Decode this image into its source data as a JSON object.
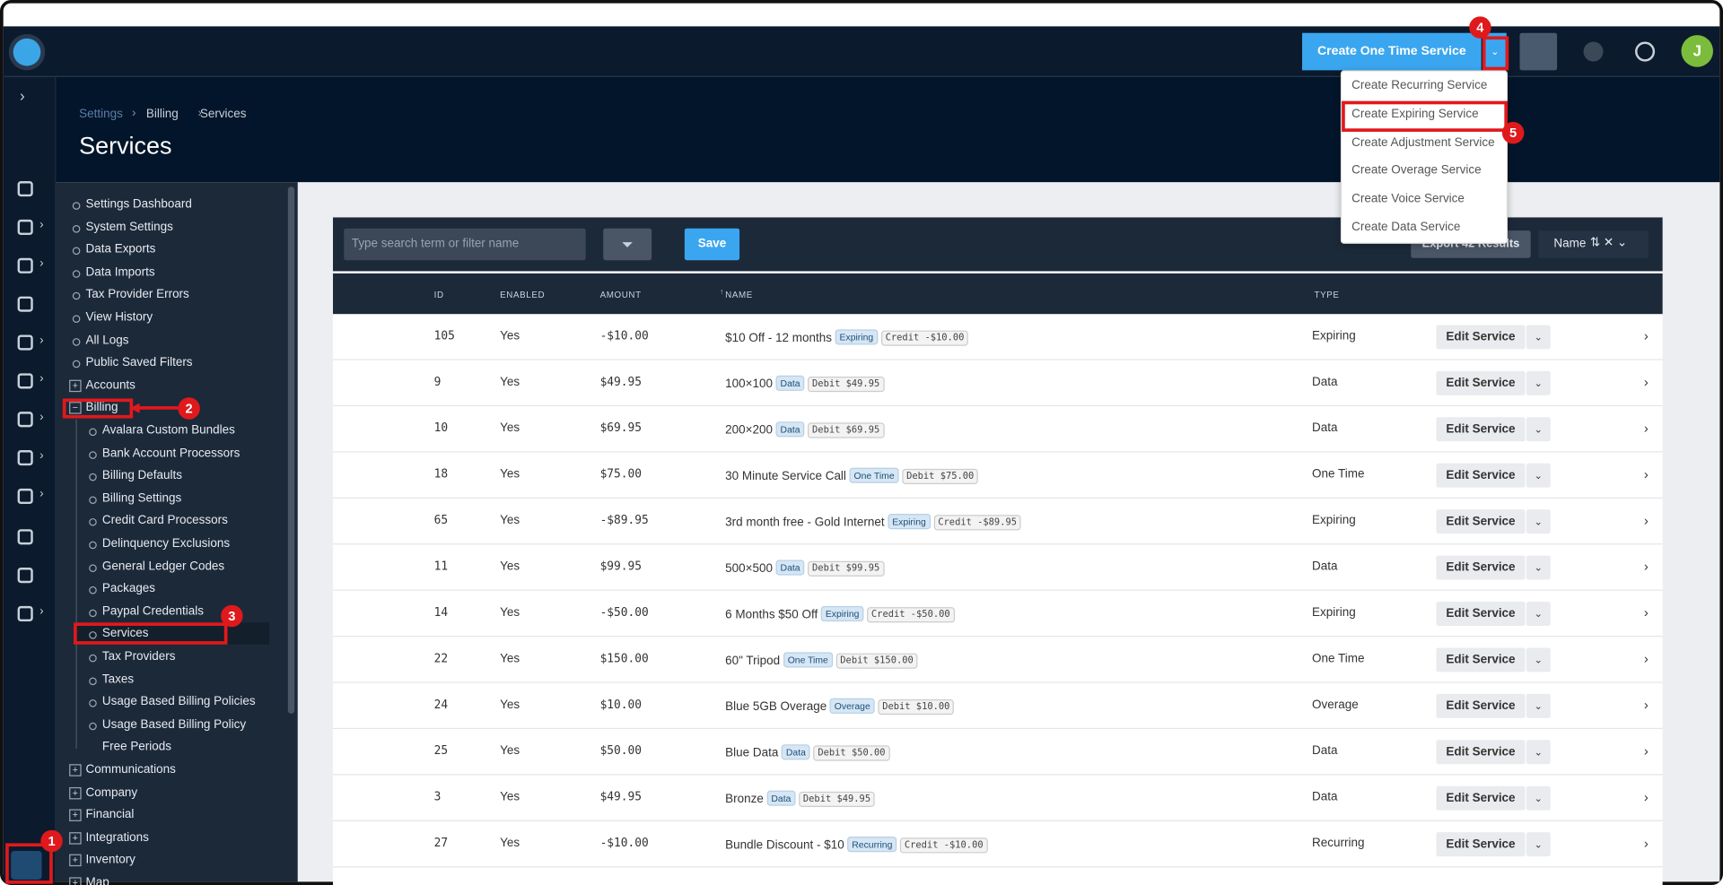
{
  "topbar": {
    "create_button": "Create One Time Service",
    "avatar": "J"
  },
  "dropdown": [
    "Create Recurring Service",
    "Create Expiring Service",
    "Create Adjustment Service",
    "Create Overage Service",
    "Create Voice Service",
    "Create Data Service"
  ],
  "breadcrumb": [
    "Settings",
    "Billing",
    "Services"
  ],
  "title": "Services",
  "sidebar": {
    "items": [
      "Settings Dashboard",
      "System Settings",
      "Data Exports",
      "Data Imports",
      "Tax Provider Errors",
      "View History",
      "All Logs",
      "Public Saved Filters"
    ],
    "groups_before": [
      "Accounts"
    ],
    "open_group": "Billing",
    "billing_children": [
      "Avalara Custom Bundles",
      "Bank Account Processors",
      "Billing Defaults",
      "Billing Settings",
      "Credit Card Processors",
      "Delinquency Exclusions",
      "General Ledger Codes",
      "Packages",
      "Paypal Credentials",
      "Services",
      "Tax Providers",
      "Taxes",
      "Usage Based Billing Policies",
      "Usage Based Billing Policy Free Periods"
    ],
    "groups_after": [
      "Communications",
      "Company",
      "Financial",
      "Integrations",
      "Inventory",
      "Map"
    ]
  },
  "toolbar": {
    "search_placeholder": "Type search term or filter name",
    "save": "Save",
    "export": "Export 42 Results",
    "sort": "Name"
  },
  "table": {
    "columns": [
      "ID",
      "ENABLED",
      "AMOUNT",
      "NAME",
      "TYPE"
    ],
    "action": "Edit Service",
    "rows": [
      {
        "id": "105",
        "enabled": "Yes",
        "amount": "-$10.00",
        "name": "$10 Off - 12 months",
        "tag": "Expiring",
        "price_tag": "Credit -$10.00",
        "type": "Expiring"
      },
      {
        "id": "9",
        "enabled": "Yes",
        "amount": "$49.95",
        "name": "100×100",
        "tag": "Data",
        "price_tag": "Debit $49.95",
        "type": "Data"
      },
      {
        "id": "10",
        "enabled": "Yes",
        "amount": "$69.95",
        "name": "200×200",
        "tag": "Data",
        "price_tag": "Debit $69.95",
        "type": "Data"
      },
      {
        "id": "18",
        "enabled": "Yes",
        "amount": "$75.00",
        "name": "30 Minute Service Call",
        "tag": "One Time",
        "price_tag": "Debit $75.00",
        "type": "One Time"
      },
      {
        "id": "65",
        "enabled": "Yes",
        "amount": "-$89.95",
        "name": "3rd month free - Gold Internet",
        "tag": "Expiring",
        "price_tag": "Credit -$89.95",
        "type": "Expiring"
      },
      {
        "id": "11",
        "enabled": "Yes",
        "amount": "$99.95",
        "name": "500×500",
        "tag": "Data",
        "price_tag": "Debit $99.95",
        "type": "Data"
      },
      {
        "id": "14",
        "enabled": "Yes",
        "amount": "-$50.00",
        "name": "6 Months $50 Off",
        "tag": "Expiring",
        "price_tag": "Credit -$50.00",
        "type": "Expiring"
      },
      {
        "id": "22",
        "enabled": "Yes",
        "amount": "$150.00",
        "name": "60\" Tripod",
        "tag": "One Time",
        "price_tag": "Debit $150.00",
        "type": "One Time"
      },
      {
        "id": "24",
        "enabled": "Yes",
        "amount": "$10.00",
        "name": "Blue 5GB Overage",
        "tag": "Overage",
        "price_tag": "Debit $10.00",
        "type": "Overage"
      },
      {
        "id": "25",
        "enabled": "Yes",
        "amount": "$50.00",
        "name": "Blue Data",
        "tag": "Data",
        "price_tag": "Debit $50.00",
        "type": "Data"
      },
      {
        "id": "3",
        "enabled": "Yes",
        "amount": "$49.95",
        "name": "Bronze",
        "tag": "Data",
        "price_tag": "Debit $49.95",
        "type": "Data"
      },
      {
        "id": "27",
        "enabled": "Yes",
        "amount": "-$10.00",
        "name": "Bundle Discount - $10",
        "tag": "Recurring",
        "price_tag": "Credit -$10.00",
        "type": "Recurring"
      }
    ]
  },
  "annotations": [
    "1",
    "2",
    "3",
    "4",
    "5"
  ]
}
